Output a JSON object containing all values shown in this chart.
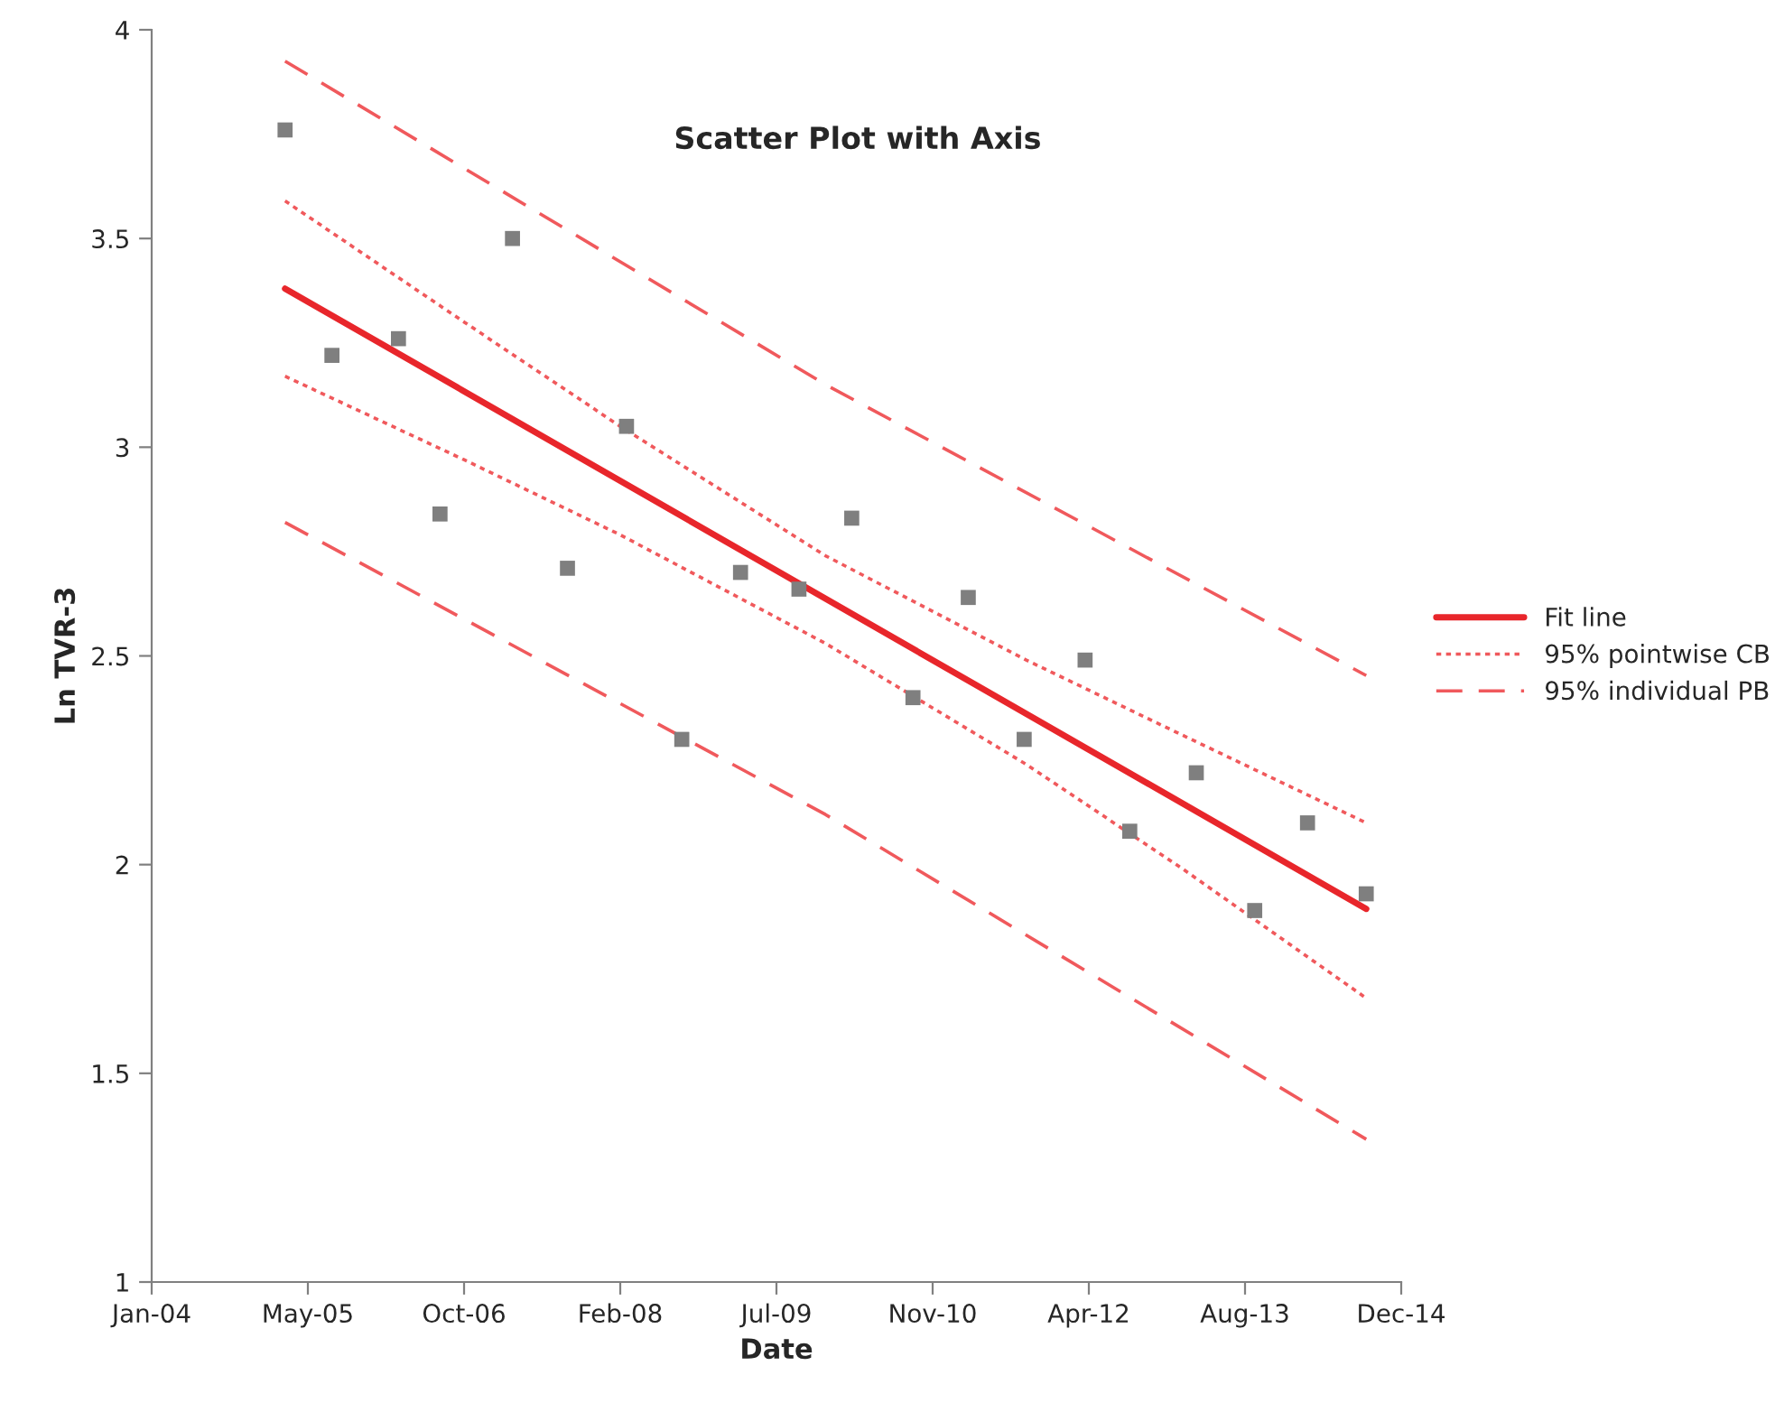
{
  "chart_data": {
    "type": "scatter",
    "title": "Scatter Plot with Axis",
    "xlabel": "Date",
    "ylabel": "Ln TVR-3",
    "xlim": [
      "2004-01-15",
      "2014-12-28"
    ],
    "xticks": [
      {
        "value": "2004-01-15",
        "label": "Jan-04"
      },
      {
        "value": "2005-05-29",
        "label": "May-05"
      },
      {
        "value": "2006-10-11",
        "label": "Oct-06"
      },
      {
        "value": "2008-02-23",
        "label": "Feb-08"
      },
      {
        "value": "2009-07-07",
        "label": "Jul-09"
      },
      {
        "value": "2010-11-19",
        "label": "Nov-10"
      },
      {
        "value": "2012-04-02",
        "label": "Apr-12"
      },
      {
        "value": "2013-08-15",
        "label": "Aug-13"
      },
      {
        "value": "2014-12-28",
        "label": "Dec-14"
      }
    ],
    "ylim": [
      1,
      4
    ],
    "yticks": [
      1,
      1.5,
      2,
      2.5,
      3,
      3.5,
      4
    ],
    "grid": false,
    "legend": "right",
    "series": [
      {
        "marker": "square",
        "color": "#7f7f7f",
        "x": [
          "2005-03-17",
          "2005-08-14",
          "2006-03-15",
          "2006-07-26",
          "2007-03-15",
          "2007-09-07",
          "2008-03-14",
          "2008-09-07",
          "2009-03-14",
          "2009-09-17",
          "2010-03-05",
          "2010-09-17",
          "2011-03-13",
          "2011-09-08",
          "2012-03-21",
          "2012-08-11",
          "2013-03-12",
          "2013-09-15",
          "2014-03-03",
          "2014-09-07"
        ],
        "values": [
          3.76,
          3.22,
          3.26,
          2.84,
          3.5,
          2.71,
          3.05,
          2.3,
          2.7,
          2.66,
          2.83,
          2.4,
          2.64,
          2.3,
          2.49,
          2.08,
          2.22,
          1.89,
          2.1,
          1.93
        ]
      },
      {
        "type": "line",
        "name": "Fit line",
        "color": "#e8262b",
        "line_style": "solid",
        "x": [
          "2005-03-17",
          "2014-09-07"
        ],
        "values": [
          3.38,
          1.894
        ]
      },
      {
        "type": "line",
        "name": "95% pointwise CB",
        "color": "#f0595c",
        "line_style": "dotted",
        "x": [
          "2005-03-17",
          "2006-10-11",
          "2008-02-23",
          "2009-12-11",
          "2011-09-15",
          "2013-01-27",
          "2014-09-07"
        ],
        "values": [
          3.59,
          3.3,
          3.05,
          2.74,
          2.49,
          2.31,
          2.1
        ]
      },
      {
        "type": "line",
        "color": "#f0595c",
        "line_style": "dotted",
        "x": [
          "2005-03-17",
          "2006-10-11",
          "2008-02-23",
          "2009-12-11",
          "2011-09-15",
          "2013-01-27",
          "2014-09-07"
        ],
        "values": [
          3.17,
          2.97,
          2.79,
          2.53,
          2.24,
          1.99,
          1.68
        ]
      },
      {
        "type": "line",
        "name": "95% individual PB",
        "color": "#f0595c",
        "line_style": "dashed",
        "x": [
          "2005-03-17",
          "2009-12-11",
          "2014-09-07"
        ],
        "values": [
          3.925,
          3.15,
          2.453
        ]
      },
      {
        "type": "line",
        "color": "#f0595c",
        "line_style": "dashed",
        "x": [
          "2005-03-17",
          "2009-12-11",
          "2014-09-07"
        ],
        "values": [
          2.82,
          2.12,
          1.342
        ]
      }
    ]
  }
}
